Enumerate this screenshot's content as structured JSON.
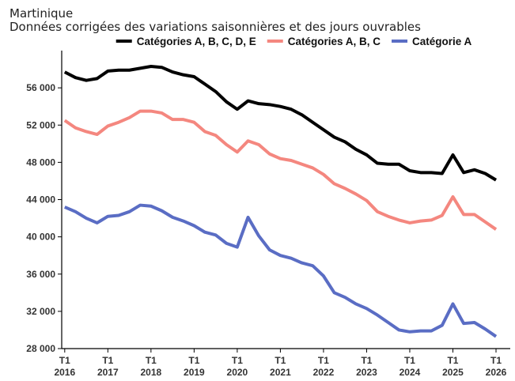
{
  "chart_data": {
    "type": "line",
    "subtitle": [
      "Martinique",
      "Données corrigées des variations saisonnières et des jours ouvrables"
    ],
    "x": [
      2016,
      2016.25,
      2016.5,
      2016.75,
      2017,
      2017.25,
      2017.5,
      2017.75,
      2018,
      2018.25,
      2018.5,
      2018.75,
      2019,
      2019.25,
      2019.5,
      2019.75,
      2020,
      2020.25,
      2020.5,
      2020.75,
      2021,
      2021.25,
      2021.5,
      2021.75,
      2022,
      2022.25,
      2022.5,
      2022.75,
      2023,
      2023.25,
      2023.5,
      2023.75,
      2024,
      2024.25,
      2024.5,
      2024.75,
      2025,
      2025.25,
      2025.5,
      2025.75,
      2026
    ],
    "series": [
      {
        "name": "Catégories A, B, C, D, E",
        "color": "#000000",
        "values": [
          57700,
          57100,
          56800,
          57000,
          57800,
          57900,
          57900,
          58100,
          58300,
          58200,
          57700,
          57400,
          57200,
          56400,
          55600,
          54500,
          53700,
          54600,
          54300,
          54200,
          54000,
          53700,
          53100,
          52300,
          51500,
          50700,
          50200,
          49400,
          48800,
          47900,
          47800,
          47800,
          47100,
          46900,
          46900,
          46800,
          48800,
          46900,
          47200,
          46800,
          46100
        ]
      },
      {
        "name": "Catégories A, B, C",
        "color": "#f4877f",
        "values": [
          52500,
          51700,
          51300,
          51000,
          51900,
          52300,
          52800,
          53500,
          53500,
          53300,
          52600,
          52600,
          52300,
          51300,
          50900,
          49900,
          49100,
          50300,
          49900,
          48900,
          48400,
          48200,
          47800,
          47400,
          46700,
          45700,
          45200,
          44600,
          43900,
          42700,
          42200,
          41800,
          41500,
          41700,
          41800,
          42300,
          44300,
          42400,
          42400,
          41600,
          40800
        ]
      },
      {
        "name": "Catégorie A",
        "color": "#5a6dc4",
        "values": [
          43200,
          42700,
          42000,
          41500,
          42200,
          42300,
          42700,
          43400,
          43300,
          42800,
          42100,
          41700,
          41200,
          40500,
          40200,
          39300,
          38900,
          42100,
          40100,
          38600,
          38000,
          37700,
          37200,
          36900,
          35800,
          34000,
          33500,
          32800,
          32300,
          31600,
          30800,
          30000,
          29800,
          29900,
          29900,
          30500,
          32800,
          30700,
          30800,
          30100,
          29300
        ]
      }
    ],
    "xlim": [
      2015.93,
      2026.33
    ],
    "xticks": [
      {
        "value": 2016,
        "label": [
          "T1",
          "2016"
        ]
      },
      {
        "value": 2017,
        "label": [
          "T1",
          "2017"
        ]
      },
      {
        "value": 2018,
        "label": [
          "T1",
          "2018"
        ]
      },
      {
        "value": 2019,
        "label": [
          "T1",
          "2019"
        ]
      },
      {
        "value": 2020,
        "label": [
          "T1",
          "2020"
        ]
      },
      {
        "value": 2021,
        "label": [
          "T1",
          "2021"
        ]
      },
      {
        "value": 2022,
        "label": [
          "T1",
          "2022"
        ]
      },
      {
        "value": 2023,
        "label": [
          "T1",
          "2023"
        ]
      },
      {
        "value": 2024,
        "label": [
          "T1",
          "2024"
        ]
      },
      {
        "value": 2025,
        "label": [
          "T1",
          "2025"
        ]
      },
      {
        "value": 2026,
        "label": [
          "T1",
          "2026"
        ]
      }
    ],
    "ylim": [
      28000,
      60000
    ],
    "yticks": [
      {
        "value": 28000,
        "label": "28 000"
      },
      {
        "value": 32000,
        "label": "32 000"
      },
      {
        "value": 36000,
        "label": "36 000"
      },
      {
        "value": 40000,
        "label": "40 000"
      },
      {
        "value": 44000,
        "label": "44 000"
      },
      {
        "value": 48000,
        "label": "48 000"
      },
      {
        "value": 52000,
        "label": "52 000"
      },
      {
        "value": 56000,
        "label": "56 000"
      }
    ],
    "grid": false,
    "legend": "top"
  }
}
